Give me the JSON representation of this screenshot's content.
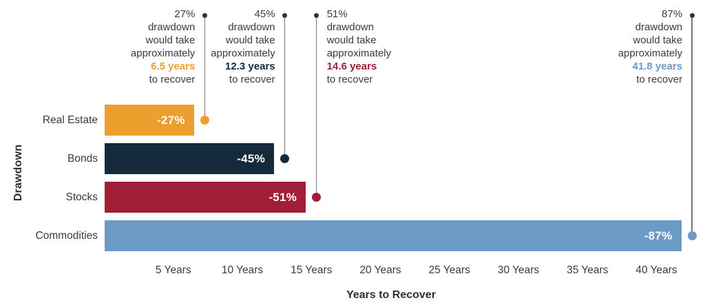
{
  "chart_data": {
    "type": "bar",
    "orientation": "horizontal",
    "xlabel": "Years to Recover",
    "ylabel": "Drawdown",
    "xlim": [
      0,
      43
    ],
    "grid": false,
    "x_ticks": [
      {
        "value": 5,
        "label": "5 Years"
      },
      {
        "value": 10,
        "label": "10 Years"
      },
      {
        "value": 15,
        "label": "15 Years"
      },
      {
        "value": 20,
        "label": "20 Years"
      },
      {
        "value": 25,
        "label": "25 Years"
      },
      {
        "value": 30,
        "label": "30 Years"
      },
      {
        "value": 35,
        "label": "35 Years"
      },
      {
        "value": 40,
        "label": "40 Years"
      }
    ],
    "bars": [
      {
        "category": "Real Estate",
        "drawdown_pct": -27,
        "bar_label": "-27%",
        "recover_years": 6.5,
        "color": "#ED9F2D",
        "annotation": {
          "lines": [
            "27%",
            "drawdown",
            "would take",
            "approximately"
          ],
          "highlight": "6.5 years",
          "suffix": "to recover",
          "highlight_color": "#ED9F2D",
          "text_side": "left"
        }
      },
      {
        "category": "Bonds",
        "drawdown_pct": -45,
        "bar_label": "-45%",
        "recover_years": 12.3,
        "color": "#152A3B",
        "annotation": {
          "lines": [
            "45%",
            "drawdown",
            "would take",
            "approximately"
          ],
          "highlight": "12.3 years",
          "suffix": "to recover",
          "highlight_color": "#152A3B",
          "text_side": "left"
        }
      },
      {
        "category": "Stocks",
        "drawdown_pct": -51,
        "bar_label": "-51%",
        "recover_years": 14.6,
        "color": "#A21E37",
        "annotation": {
          "lines": [
            "51%",
            "drawdown",
            "would take",
            "approximately"
          ],
          "highlight": "14.6 years",
          "suffix": "to recover",
          "highlight_color": "#A21E37",
          "text_side": "right"
        }
      },
      {
        "category": "Commodities",
        "drawdown_pct": -87,
        "bar_label": "-87%",
        "recover_years": 41.8,
        "color": "#6C9AC6",
        "annotation": {
          "lines": [
            "87%",
            "drawdown",
            "would take",
            "approximately"
          ],
          "highlight": "41.8 years",
          "suffix": "to recover",
          "highlight_color": "#6C9AC6",
          "text_side": "left"
        }
      }
    ],
    "colors": {
      "connector_line": "#777777",
      "connector_top_dot": "#333333",
      "axis_text": "#3b3b3b",
      "bar_label_text": "#ffffff",
      "background": "#ffffff"
    }
  }
}
